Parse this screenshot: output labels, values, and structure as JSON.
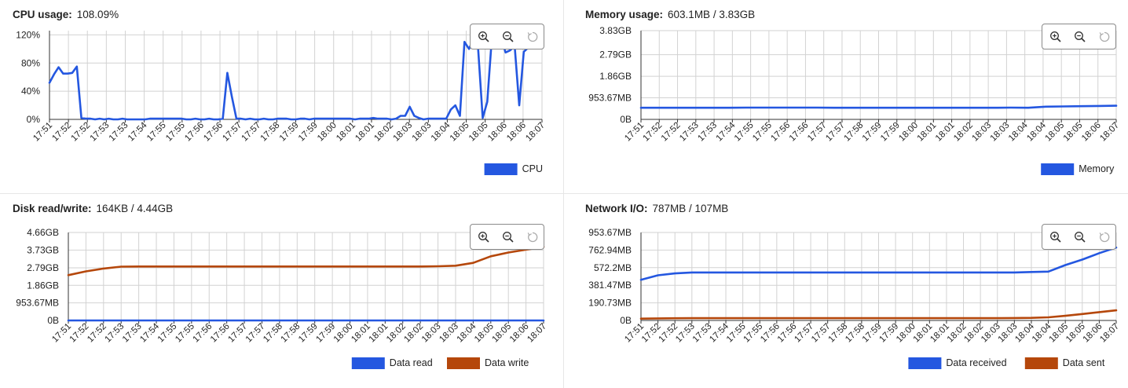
{
  "panels": {
    "cpu": {
      "label": "CPU usage:",
      "value": "108.09%",
      "chart_data": {
        "type": "line",
        "ylim": [
          0,
          126
        ],
        "y_ticks": [
          0,
          40,
          80,
          120
        ],
        "y_tick_labels": [
          "0%",
          "40%",
          "80%",
          "120%"
        ],
        "x_tick_labels": [
          "17:51",
          "17:52",
          "17:52",
          "17:53",
          "17:53",
          "17:54",
          "17:55",
          "17:55",
          "17:56",
          "17:56",
          "17:57",
          "17:57",
          "17:58",
          "17:59",
          "17:59",
          "18:00",
          "18:01",
          "18:01",
          "18:02",
          "18:03",
          "18:03",
          "18:04",
          "18:05",
          "18:05",
          "18:06",
          "18:06",
          "18:07"
        ],
        "series": [
          {
            "name": "CPU",
            "color": "#2457e0",
            "values": [
              52,
              64,
              74,
              65,
              65,
              66,
              75,
              2,
              1,
              1,
              0,
              1,
              0,
              1,
              0,
              0,
              1,
              0,
              0,
              0,
              0,
              0,
              1,
              1,
              1,
              1,
              1,
              1,
              1,
              1,
              0,
              0,
              1,
              0,
              0,
              1,
              0,
              0,
              1,
              66,
              32,
              1,
              1,
              0,
              1,
              0,
              0,
              1,
              0,
              0,
              1,
              1,
              1,
              0,
              0,
              1,
              1,
              0,
              1,
              1,
              1,
              1,
              1,
              1,
              1,
              1,
              1,
              0,
              1,
              1,
              1,
              2,
              1,
              1,
              1,
              0,
              1,
              5,
              5,
              18,
              5,
              2,
              0,
              1,
              1,
              1,
              1,
              1,
              14,
              20,
              5,
              110,
              100,
              114,
              100,
              2,
              25,
              115,
              105,
              116,
              95,
              98,
              104,
              20,
              96,
              102,
              113,
              120,
              108
            ]
          }
        ]
      }
    },
    "memory": {
      "label": "Memory usage:",
      "value": "603.1MB / 3.83GB",
      "chart_data": {
        "type": "line",
        "ylim": [
          0,
          3.83
        ],
        "y_ticks": [
          0,
          0.93,
          1.86,
          2.79,
          3.83
        ],
        "y_tick_labels": [
          "0B",
          "953.67MB",
          "1.86GB",
          "2.79GB",
          "3.83GB"
        ],
        "x_tick_labels": [
          "17:51",
          "17:52",
          "17:52",
          "17:53",
          "17:53",
          "17:54",
          "17:55",
          "17:55",
          "17:56",
          "17:56",
          "17:57",
          "17:57",
          "17:58",
          "17:59",
          "17:59",
          "18:00",
          "18:01",
          "18:01",
          "18:02",
          "18:03",
          "18:03",
          "18:04",
          "18:04",
          "18:05",
          "18:05",
          "18:06",
          "18:07"
        ],
        "series": [
          {
            "name": "Memory",
            "color": "#2457e0",
            "values": [
              0.5,
              0.5,
              0.5,
              0.5,
              0.5,
              0.5,
              0.51,
              0.51,
              0.51,
              0.51,
              0.51,
              0.5,
              0.5,
              0.5,
              0.5,
              0.5,
              0.5,
              0.5,
              0.5,
              0.5,
              0.5,
              0.51,
              0.5,
              0.55,
              0.56,
              0.57,
              0.58,
              0.59
            ]
          }
        ]
      }
    },
    "disk": {
      "label": "Disk read/write:",
      "value": "164KB / 4.44GB",
      "chart_data": {
        "type": "line",
        "ylim": [
          0,
          4.66
        ],
        "y_ticks": [
          0,
          0.93,
          1.86,
          2.79,
          3.73,
          4.66
        ],
        "y_tick_labels": [
          "0B",
          "953.67MB",
          "1.86GB",
          "2.79GB",
          "3.73GB",
          "4.66GB"
        ],
        "x_tick_labels": [
          "17:51",
          "17:52",
          "17:52",
          "17:53",
          "17:53",
          "17:54",
          "17:55",
          "17:55",
          "17:56",
          "17:56",
          "17:57",
          "17:57",
          "17:58",
          "17:58",
          "17:59",
          "17:59",
          "18:00",
          "18:01",
          "18:01",
          "18:02",
          "18:02",
          "18:03",
          "18:03",
          "18:04",
          "18:05",
          "18:05",
          "18:06",
          "18:07"
        ],
        "series": [
          {
            "name": "Data read",
            "color": "#2457e0",
            "values": [
              0,
              0,
              0,
              0,
              0,
              0,
              0,
              0,
              0,
              0,
              0,
              0,
              0,
              0,
              0,
              0,
              0,
              0,
              0,
              0,
              0,
              0,
              0,
              0,
              0,
              0,
              0,
              0
            ]
          },
          {
            "name": "Data write",
            "color": "#b5470b",
            "values": [
              2.4,
              2.6,
              2.75,
              2.85,
              2.86,
              2.86,
              2.86,
              2.86,
              2.86,
              2.86,
              2.86,
              2.86,
              2.86,
              2.86,
              2.86,
              2.86,
              2.86,
              2.86,
              2.86,
              2.86,
              2.86,
              2.87,
              2.9,
              3.05,
              3.4,
              3.6,
              3.75,
              3.9
            ]
          }
        ]
      }
    },
    "network": {
      "label": "Network I/O:",
      "value": "787MB / 107MB",
      "chart_data": {
        "type": "line",
        "ylim": [
          0,
          953.67
        ],
        "y_ticks": [
          0,
          190.73,
          381.47,
          572.2,
          762.94,
          953.67
        ],
        "y_tick_labels": [
          "0B",
          "190.73MB",
          "381.47MB",
          "572.2MB",
          "762.94MB",
          "953.67MB"
        ],
        "x_tick_labels": [
          "17:51",
          "17:52",
          "17:52",
          "17:53",
          "17:53",
          "17:54",
          "17:55",
          "17:55",
          "17:56",
          "17:56",
          "17:57",
          "17:57",
          "17:58",
          "17:58",
          "17:59",
          "17:59",
          "18:00",
          "18:01",
          "18:01",
          "18:02",
          "18:02",
          "18:03",
          "18:03",
          "18:04",
          "18:04",
          "18:05",
          "18:05",
          "18:06",
          "18:07"
        ],
        "series": [
          {
            "name": "Data received",
            "color": "#2457e0",
            "values": [
              440,
              490,
              510,
              520,
              520,
              520,
              520,
              520,
              520,
              520,
              520,
              520,
              520,
              520,
              520,
              520,
              520,
              520,
              520,
              520,
              520,
              520,
              520,
              525,
              530,
              600,
              660,
              730,
              790
            ]
          },
          {
            "name": "Data sent",
            "color": "#b5470b",
            "values": [
              20,
              22,
              24,
              25,
              25,
              25,
              25,
              25,
              25,
              25,
              25,
              25,
              25,
              25,
              25,
              25,
              25,
              25,
              25,
              25,
              25,
              25,
              26,
              28,
              34,
              50,
              70,
              90,
              110
            ]
          }
        ]
      }
    }
  },
  "icons": {
    "zoom_in": "zoom-in-icon",
    "zoom_out": "zoom-out-icon",
    "reset": "reset-icon"
  },
  "colors": {
    "accent": "#2457e0",
    "secondary": "#b5470b",
    "grid": "#cccccc",
    "axis": "#222222"
  }
}
